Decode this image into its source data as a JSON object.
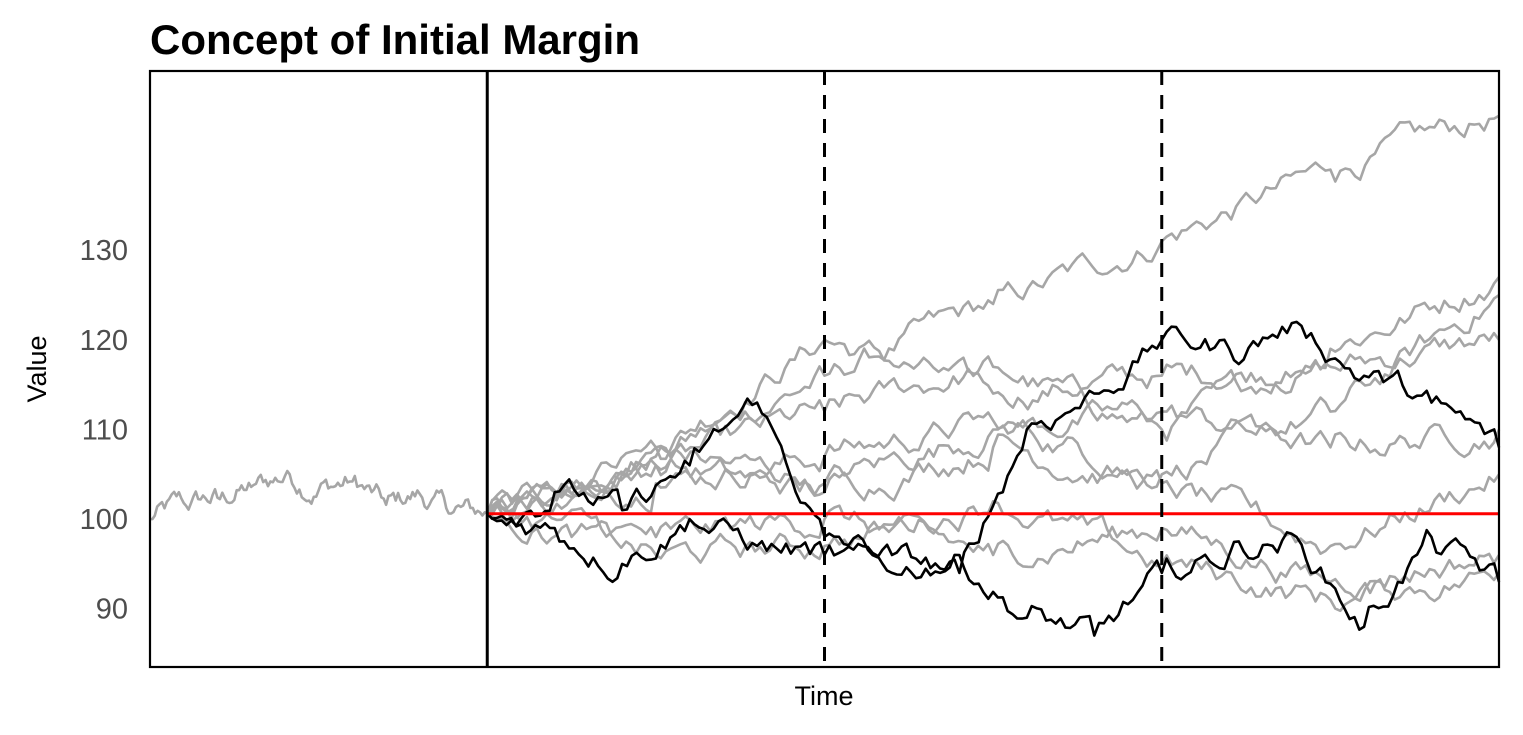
{
  "chart_data": {
    "type": "line",
    "title": "Concept of Initial Margin",
    "xlabel": "Time",
    "ylabel": "Value",
    "yticks": [
      90,
      100,
      110,
      120,
      130
    ],
    "ylim": [
      83.5,
      150
    ],
    "xlim": [
      0,
      4
    ],
    "grid": false,
    "colors": {
      "historical": "#a6a6a6",
      "paths": "#a6a6a6",
      "highlight": "#000000",
      "reference": "#ff0000",
      "markers": "#000000"
    },
    "markers": [
      {
        "x": 1,
        "style": "solid"
      },
      {
        "x": 2,
        "style": "dashed"
      },
      {
        "x": 3,
        "style": "dashed"
      }
    ],
    "reference_line": {
      "y": 100.6,
      "x_start": 1,
      "x_end": 4
    },
    "historical_path": {
      "name": "",
      "x": [
        0,
        0.1,
        0.2,
        0.3,
        0.4,
        0.5,
        0.6,
        0.7,
        0.8,
        0.9,
        1.0
      ],
      "y": [
        100,
        101.8,
        102.4,
        103.6,
        104.8,
        103.2,
        104.2,
        101.6,
        102.8,
        100.8,
        100.6
      ]
    },
    "simulated_paths": [
      {
        "x": [
          1,
          1.5,
          2,
          2.5,
          3,
          3.5,
          4
        ],
        "y": [
          100.6,
          107,
          116,
          124,
          131,
          139,
          145
        ]
      },
      {
        "x": [
          1,
          1.5,
          2,
          2.5,
          3,
          3.5,
          4
        ],
        "y": [
          100.6,
          108,
          120,
          114,
          116,
          117,
          120
        ]
      },
      {
        "x": [
          1,
          1.5,
          2,
          2.5,
          3,
          3.5,
          4
        ],
        "y": [
          100.6,
          106,
          112,
          117,
          110,
          119,
          127
        ]
      },
      {
        "x": [
          1,
          1.5,
          2,
          2.5,
          3,
          3.5,
          4
        ],
        "y": [
          100.6,
          104,
          107,
          111,
          105,
          112,
          125
        ]
      },
      {
        "x": [
          1,
          1.5,
          2,
          2.5,
          3,
          3.5,
          4
        ],
        "y": [
          100.6,
          108,
          104,
          110,
          112,
          108,
          110
        ]
      },
      {
        "x": [
          1,
          1.5,
          2,
          2.5,
          3,
          3.5,
          4
        ],
        "y": [
          100.6,
          106,
          103,
          108,
          104,
          97,
          105
        ]
      },
      {
        "x": [
          1,
          1.5,
          2,
          2.5,
          3,
          3.5,
          4
        ],
        "y": [
          100.6,
          98,
          100,
          96,
          99,
          93,
          96
        ]
      },
      {
        "x": [
          1,
          1.5,
          2,
          2.5,
          3,
          3.5,
          4
        ],
        "y": [
          100.6,
          96,
          97,
          102,
          95,
          91,
          94
        ]
      }
    ],
    "highlighted_paths": [
      {
        "x": [
          1,
          1.2,
          1.4,
          1.6,
          1.8,
          2.0,
          2.2,
          2.4,
          2.6,
          2.8,
          3.0,
          3.2,
          3.4,
          3.6,
          3.8,
          4.0
        ],
        "y": [
          100.6,
          103,
          101,
          106,
          113,
          98,
          96,
          94,
          110,
          114,
          120,
          119,
          122,
          116,
          113,
          108
        ]
      },
      {
        "x": [
          1,
          1.2,
          1.4,
          1.6,
          1.8,
          2.0,
          2.2,
          2.4,
          2.6,
          2.8,
          3.0,
          3.2,
          3.4,
          3.6,
          3.8,
          4.0
        ],
        "y": [
          100.6,
          99,
          95,
          100,
          97,
          96,
          94,
          96,
          89,
          87,
          94,
          96,
          98,
          88,
          98,
          93
        ]
      }
    ]
  }
}
